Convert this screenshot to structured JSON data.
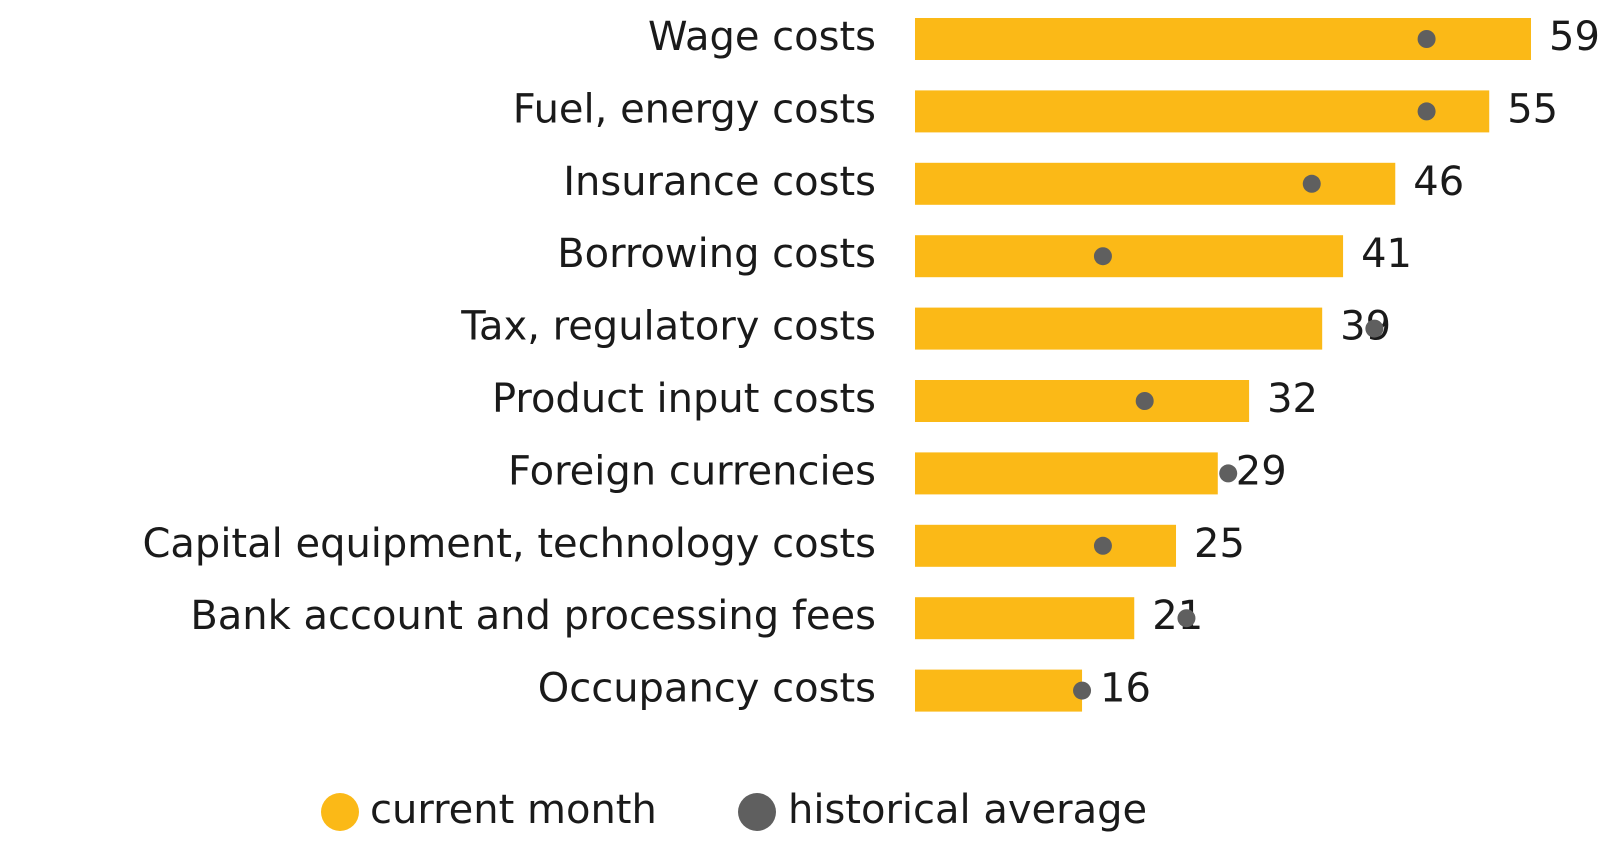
{
  "chart_data": {
    "type": "bar",
    "categories": [
      "Wage costs",
      "Fuel, energy costs",
      "Insurance costs",
      "Borrowing costs",
      "Tax, regulatory costs",
      "Product input costs",
      "Foreign currencies",
      "Capital equipment, technology costs",
      "Bank account and processing fees",
      "Occupancy costs"
    ],
    "series": [
      {
        "name": "current month",
        "color": "#fbb917",
        "values": [
          59,
          55,
          46,
          41,
          39,
          32,
          29,
          25,
          21,
          16
        ]
      },
      {
        "name": "historical average",
        "color": "#5f5f5f",
        "values": [
          49,
          49,
          38,
          18,
          44,
          22,
          30,
          18,
          26,
          16
        ]
      }
    ],
    "legend": "bottom"
  }
}
